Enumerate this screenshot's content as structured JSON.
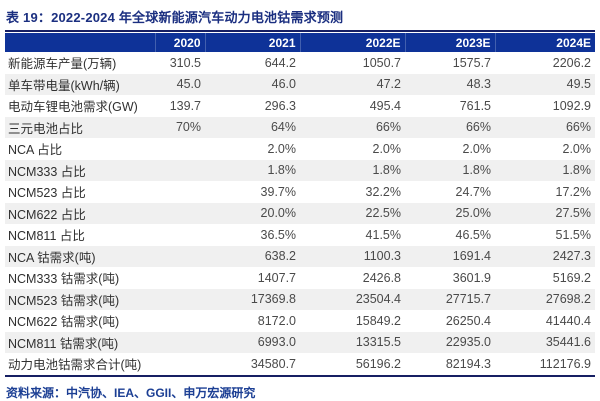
{
  "title": "表 19：2022-2024 年全球新能源汽车动力电池钴需求预测",
  "source": "资料来源：中汽协、IEA、GGII、申万宏源研究",
  "colors": {
    "header_bg": "#0E3298",
    "header_text": "#FFFFFF",
    "title_text": "#1B2F80",
    "rule": "#161F63",
    "zebra_row": "#F0F0F0",
    "source_text": "#1C3F94"
  },
  "chart_data": {
    "type": "table",
    "columns": [
      "",
      "2020",
      "2021",
      "2022E",
      "2023E",
      "2024E"
    ],
    "rows": [
      {
        "label": "新能源车产量(万辆)",
        "values": [
          "310.5",
          "644.2",
          "1050.7",
          "1575.7",
          "2206.2"
        ]
      },
      {
        "label": "单车带电量(kWh/辆)",
        "values": [
          "45.0",
          "46.0",
          "47.2",
          "48.3",
          "49.5"
        ]
      },
      {
        "label": "电动车锂电池需求(GW)",
        "values": [
          "139.7",
          "296.3",
          "495.4",
          "761.5",
          "1092.9"
        ]
      },
      {
        "label": "三元电池占比",
        "values": [
          "70%",
          "64%",
          "66%",
          "66%",
          "66%"
        ]
      },
      {
        "label": "NCA 占比",
        "values": [
          "",
          "2.0%",
          "2.0%",
          "2.0%",
          "2.0%"
        ]
      },
      {
        "label": "NCM333 占比",
        "values": [
          "",
          "1.8%",
          "1.8%",
          "1.8%",
          "1.8%"
        ]
      },
      {
        "label": "NCM523 占比",
        "values": [
          "",
          "39.7%",
          "32.2%",
          "24.7%",
          "17.2%"
        ]
      },
      {
        "label": "NCM622 占比",
        "values": [
          "",
          "20.0%",
          "22.5%",
          "25.0%",
          "27.5%"
        ]
      },
      {
        "label": "NCM811 占比",
        "values": [
          "",
          "36.5%",
          "41.5%",
          "46.5%",
          "51.5%"
        ]
      },
      {
        "label": "NCA 钴需求(吨)",
        "values": [
          "",
          "638.2",
          "1100.3",
          "1691.4",
          "2427.3"
        ]
      },
      {
        "label": "NCM333 钴需求(吨)",
        "values": [
          "",
          "1407.7",
          "2426.8",
          "3601.9",
          "5169.2"
        ]
      },
      {
        "label": "NCM523 钴需求(吨)",
        "values": [
          "",
          "17369.8",
          "23504.4",
          "27715.7",
          "27698.2"
        ]
      },
      {
        "label": "NCM622 钴需求(吨)",
        "values": [
          "",
          "8172.0",
          "15849.2",
          "26250.4",
          "41440.4"
        ]
      },
      {
        "label": "NCM811 钴需求(吨)",
        "values": [
          "",
          "6993.0",
          "13315.5",
          "22935.0",
          "35441.6"
        ]
      },
      {
        "label": "动力电池钴需求合计(吨)",
        "values": [
          "",
          "34580.7",
          "56196.2",
          "82194.3",
          "112176.9"
        ]
      }
    ]
  }
}
